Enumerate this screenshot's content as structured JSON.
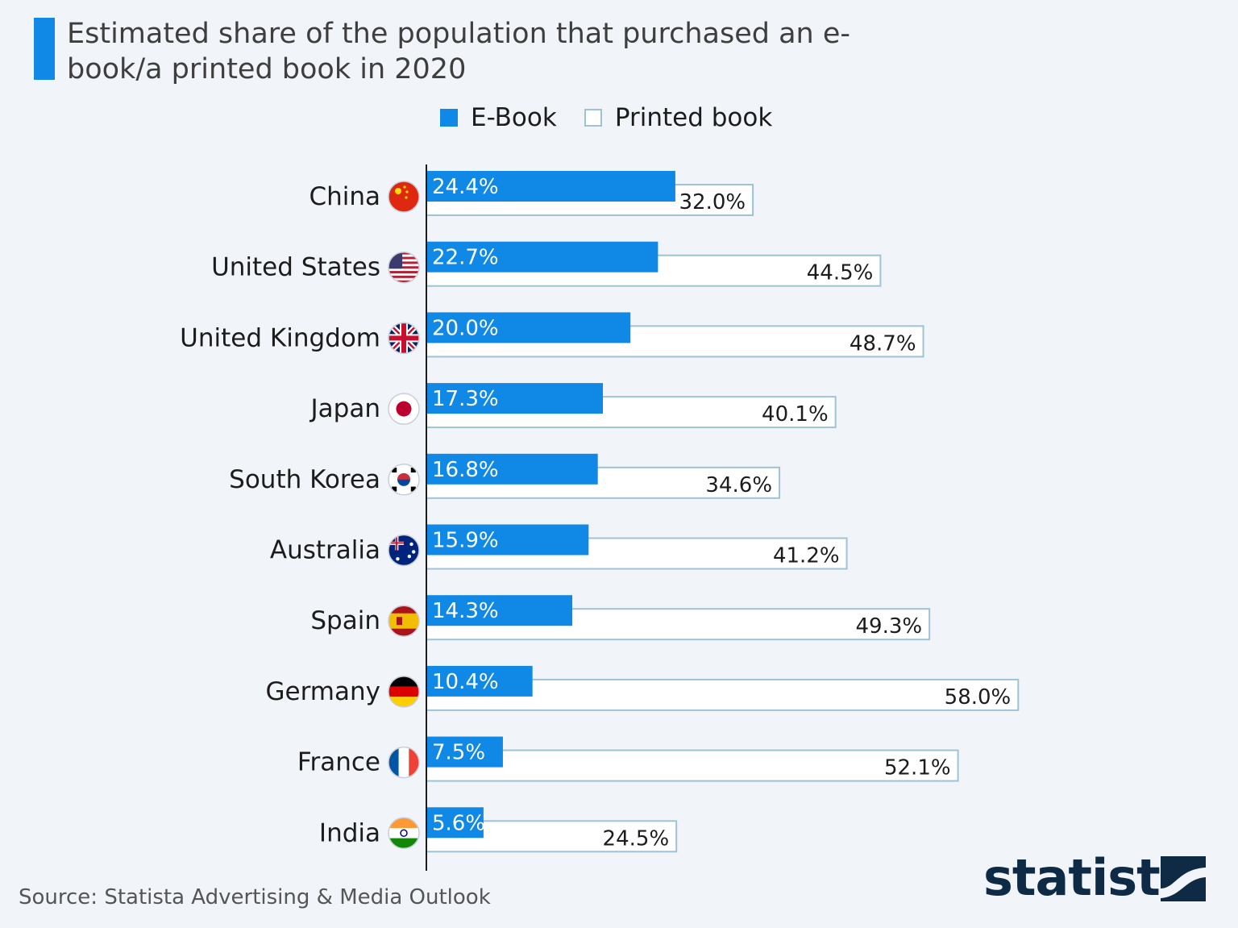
{
  "title": "Estimated share of the population that purchased an e-book/a printed book in 2020",
  "legend": {
    "ebook": "E-Book",
    "printed": "Printed book"
  },
  "source": "Source: Statista Advertising & Media Outlook",
  "logo": {
    "text": "statista",
    "icon": "statista-logo-mark"
  },
  "colors": {
    "ebook": "#1088e6",
    "printed_fill": "#ffffff",
    "printed_border": "#9fc3d6",
    "background": "#f1f4f9"
  },
  "chart_data": {
    "type": "bar",
    "orientation": "horizontal",
    "categories": [
      "China",
      "United States",
      "United Kingdom",
      "Japan",
      "South Korea",
      "Australia",
      "Spain",
      "Germany",
      "France",
      "India"
    ],
    "series": [
      {
        "name": "E-Book",
        "values": [
          24.4,
          22.7,
          20.0,
          17.3,
          16.8,
          15.9,
          14.3,
          10.4,
          7.5,
          5.6
        ],
        "labels": [
          "24.4%",
          "22.7%",
          "20.0%",
          "17.3%",
          "16.8%",
          "15.9%",
          "14.3%",
          "10.4%",
          "7.5%",
          "5.6%"
        ]
      },
      {
        "name": "Printed book",
        "values": [
          32.0,
          44.5,
          48.7,
          40.1,
          34.6,
          41.2,
          49.3,
          58.0,
          52.1,
          24.5
        ],
        "labels": [
          "32.0%",
          "44.5%",
          "48.7%",
          "40.1%",
          "34.6%",
          "41.2%",
          "49.3%",
          "58.0%",
          "52.1%",
          "24.5%"
        ]
      }
    ],
    "flags": [
      "flag-china-icon",
      "flag-united-states-icon",
      "flag-united-kingdom-icon",
      "flag-japan-icon",
      "flag-south-korea-icon",
      "flag-australia-icon",
      "flag-spain-icon",
      "flag-germany-icon",
      "flag-france-icon",
      "flag-india-icon"
    ],
    "xlim": [
      0,
      58
    ],
    "legend_position": "top",
    "grid": false
  }
}
